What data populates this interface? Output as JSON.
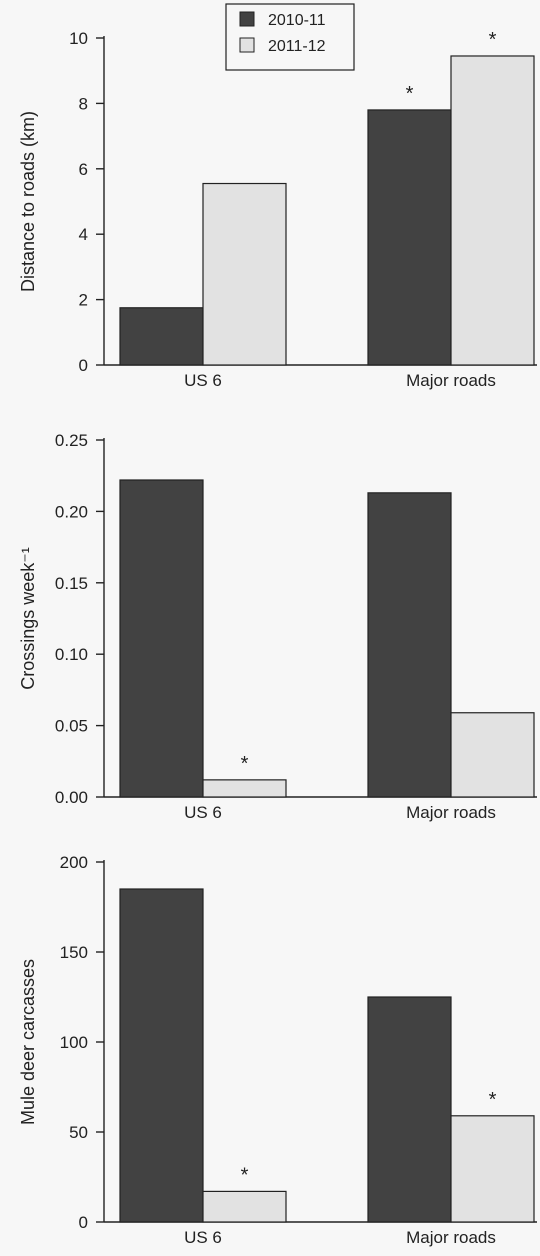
{
  "chart_data": [
    {
      "type": "bar",
      "categories": [
        "US 6",
        "Major roads"
      ],
      "series": [
        {
          "name": "2010-11",
          "values": [
            1.75,
            7.8
          ]
        },
        {
          "name": "2011-12",
          "values": [
            5.55,
            9.45
          ]
        }
      ],
      "ylabel": "Distance to roads (km)",
      "ylim": [
        0,
        10
      ],
      "yticks": [
        "0",
        "2",
        "4",
        "6",
        "8",
        "10"
      ],
      "significance": [
        [
          false,
          true
        ],
        [
          false,
          true
        ]
      ],
      "significance_marker": "*",
      "legend": "top-center",
      "grid": false
    },
    {
      "type": "bar",
      "categories": [
        "US 6",
        "Major roads"
      ],
      "series": [
        {
          "name": "2010-11",
          "values": [
            0.222,
            0.213
          ]
        },
        {
          "name": "2011-12",
          "values": [
            0.012,
            0.059
          ]
        }
      ],
      "ylabel": "Crossings week⁻¹",
      "ylim": [
        0,
        0.25
      ],
      "yticks": [
        "0.00",
        "0.05",
        "0.10",
        "0.15",
        "0.20",
        "0.25"
      ],
      "significance": [
        [
          false,
          false
        ],
        [
          true,
          false
        ]
      ],
      "significance_marker": "*",
      "grid": false
    },
    {
      "type": "bar",
      "categories": [
        "US 6",
        "Major roads"
      ],
      "series": [
        {
          "name": "2010-11",
          "values": [
            185,
            125
          ]
        },
        {
          "name": "2011-12",
          "values": [
            17,
            59
          ]
        }
      ],
      "ylabel": "Mule deer carcasses",
      "ylim": [
        0,
        200
      ],
      "yticks": [
        "0",
        "50",
        "100",
        "150",
        "200"
      ],
      "significance": [
        [
          false,
          false
        ],
        [
          true,
          true
        ]
      ],
      "significance_marker": "*",
      "grid": false
    }
  ],
  "colors": {
    "series_2010_11": "#424242",
    "series_2011_12": "#e2e2e2",
    "axis": "#222222"
  }
}
